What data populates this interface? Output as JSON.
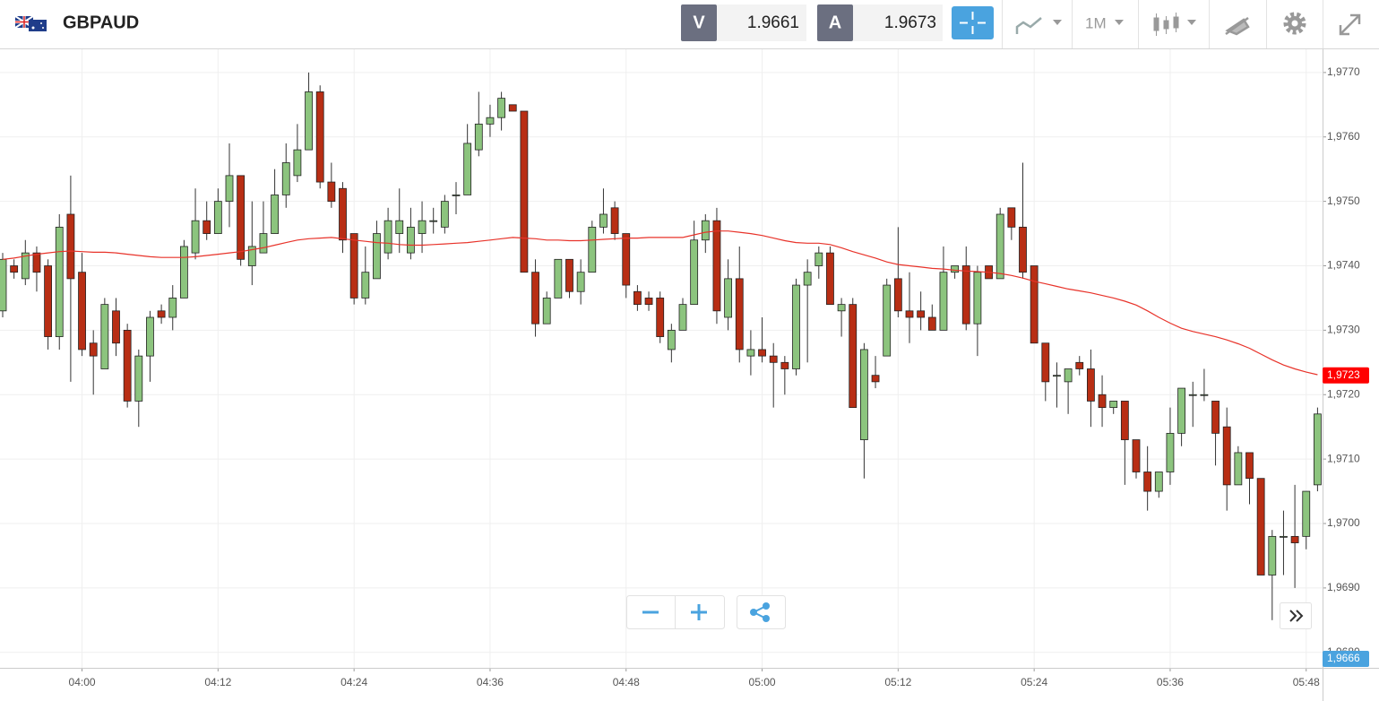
{
  "header": {
    "symbol": "GBPAUD",
    "bid_label": "V",
    "bid": 1.9661,
    "ask_label": "A",
    "ask": 1.9673,
    "timeframe": "1M"
  },
  "chart_data": {
    "type": "candlestick",
    "categories": [
      null,
      null,
      null,
      null,
      null,
      null,
      null,
      "04:00",
      null,
      null,
      null,
      null,
      null,
      null,
      null,
      null,
      null,
      null,
      null,
      "04:12",
      null,
      null,
      null,
      null,
      null,
      null,
      null,
      null,
      null,
      null,
      null,
      "04:24",
      null,
      null,
      null,
      null,
      null,
      null,
      null,
      null,
      null,
      null,
      null,
      "04:36",
      null,
      null,
      null,
      null,
      null,
      null,
      null,
      null,
      null,
      null,
      null,
      "04:48",
      null,
      null,
      null,
      null,
      null,
      null,
      null,
      null,
      null,
      null,
      null,
      "05:00",
      null,
      null,
      null,
      null,
      null,
      null,
      null,
      null,
      null,
      null,
      null,
      "05:12",
      null,
      null,
      null,
      null,
      null,
      null,
      null,
      null,
      null,
      null,
      null,
      "05:24",
      null,
      null,
      null,
      null,
      null,
      null,
      null,
      null,
      null,
      null,
      null,
      "05:36",
      null,
      null,
      null,
      null,
      null,
      null,
      null,
      null,
      null,
      null,
      null,
      "05:48",
      null
    ],
    "open": [
      1.9733,
      1.974,
      1.9738,
      1.9742,
      1.974,
      1.9729,
      1.9748,
      1.9739,
      1.9728,
      1.9724,
      1.9733,
      1.973,
      1.9719,
      1.9726,
      1.9733,
      1.9732,
      1.9735,
      1.9742,
      1.9747,
      1.9745,
      1.975,
      1.9754,
      1.974,
      1.9742,
      1.9745,
      1.9751,
      1.9754,
      1.9758,
      1.9767,
      1.9753,
      1.9752,
      1.9745,
      1.9735,
      1.9738,
      1.9742,
      1.9745,
      1.9742,
      1.9745,
      1.9747,
      1.9746,
      1.9751,
      1.9751,
      1.9758,
      1.9762,
      1.9763,
      1.9765,
      1.9764,
      1.9739,
      1.9731,
      1.9735,
      1.9741,
      1.9736,
      1.9739,
      1.9746,
      1.9749,
      1.9745,
      1.9736,
      1.9735,
      1.9735,
      1.9727,
      1.973,
      1.9734,
      1.9744,
      1.9747,
      1.9732,
      1.9738,
      1.9726,
      1.9727,
      1.9726,
      1.9725,
      1.9724,
      1.9737,
      1.974,
      1.9742,
      1.9733,
      1.9734,
      1.9713,
      1.9723,
      1.9726,
      1.9738,
      1.9733,
      1.9733,
      1.9732,
      1.973,
      1.9739,
      1.974,
      1.9731,
      1.974,
      1.9738,
      1.9749,
      1.9746,
      1.974,
      1.9728,
      1.9723,
      1.9722,
      1.9725,
      1.9724,
      1.972,
      1.9718,
      1.9719,
      1.9713,
      1.9708,
      1.9705,
      1.9708,
      1.9714,
      1.972,
      1.972,
      1.9719,
      1.9715,
      1.9706,
      1.9711,
      1.9707,
      1.9692,
      1.9698,
      1.9698,
      1.9698,
      1.9706
    ],
    "high": [
      1.9742,
      1.9741,
      1.9744,
      1.9743,
      1.9741,
      1.9748,
      1.9754,
      1.9742,
      1.973,
      1.9735,
      1.9735,
      1.9731,
      1.9727,
      1.9733,
      1.9734,
      1.9737,
      1.9744,
      1.9752,
      1.975,
      1.9752,
      1.9759,
      1.9754,
      1.975,
      1.975,
      1.9755,
      1.9759,
      1.9762,
      1.977,
      1.9768,
      1.9756,
      1.9753,
      1.9745,
      1.9743,
      1.9747,
      1.9749,
      1.9752,
      1.9749,
      1.975,
      1.9749,
      1.9751,
      1.9753,
      1.9762,
      1.9767,
      1.9765,
      1.9767,
      1.9765,
      1.9764,
      1.9741,
      1.9736,
      1.9741,
      1.9741,
      1.9741,
      1.9747,
      1.9752,
      1.975,
      1.9745,
      1.9737,
      1.9736,
      1.9736,
      1.9731,
      1.9735,
      1.9747,
      1.9748,
      1.9749,
      1.9741,
      1.9743,
      1.973,
      1.9732,
      1.9728,
      1.9726,
      1.9738,
      1.9741,
      1.9743,
      1.9743,
      1.9735,
      1.9735,
      1.9728,
      1.9726,
      1.9738,
      1.9746,
      1.9739,
      1.9736,
      1.9734,
      1.9743,
      1.974,
      1.9743,
      1.974,
      1.974,
      1.9749,
      1.9749,
      1.9756,
      1.974,
      1.9728,
      1.9725,
      1.9724,
      1.9726,
      1.9727,
      1.9723,
      1.9719,
      1.9719,
      1.9713,
      1.9712,
      1.9708,
      1.9718,
      1.9721,
      1.9722,
      1.9724,
      1.9719,
      1.9718,
      1.9712,
      1.9711,
      1.9707,
      1.9699,
      1.9702,
      1.9706,
      1.9705,
      1.9718
    ],
    "low": [
      1.9732,
      1.9738,
      1.9737,
      1.9736,
      1.9727,
      1.9727,
      1.9722,
      1.9726,
      1.972,
      1.9724,
      1.9726,
      1.9718,
      1.9715,
      1.9722,
      1.9731,
      1.973,
      1.9735,
      1.9741,
      1.9744,
      1.9745,
      1.9746,
      1.974,
      1.9737,
      1.9742,
      1.9745,
      1.9749,
      1.9753,
      1.9758,
      1.9752,
      1.9749,
      1.9742,
      1.9734,
      1.9734,
      1.9738,
      1.9741,
      1.9742,
      1.9741,
      1.9742,
      1.9745,
      1.9745,
      1.9748,
      1.9751,
      1.9757,
      1.976,
      1.9761,
      1.9764,
      1.9739,
      1.9729,
      1.9731,
      1.9735,
      1.9735,
      1.9734,
      1.9739,
      1.9745,
      1.9744,
      1.9735,
      1.9733,
      1.9733,
      1.9728,
      1.9725,
      1.973,
      1.9734,
      1.9742,
      1.9731,
      1.973,
      1.9725,
      1.9723,
      1.9725,
      1.9718,
      1.972,
      1.9723,
      1.9725,
      1.9738,
      1.9734,
      1.9729,
      1.9718,
      1.9707,
      1.9721,
      1.9726,
      1.9732,
      1.9728,
      1.973,
      1.973,
      1.973,
      1.9738,
      1.973,
      1.9726,
      1.9738,
      1.9738,
      1.9744,
      1.9738,
      1.9728,
      1.9719,
      1.9718,
      1.9717,
      1.9723,
      1.9715,
      1.9715,
      1.9717,
      1.9706,
      1.9707,
      1.9702,
      1.9704,
      1.9706,
      1.9712,
      1.9715,
      1.9719,
      1.9709,
      1.9702,
      1.9706,
      1.9703,
      1.9692,
      1.9685,
      1.9692,
      1.969,
      1.9696,
      1.9705
    ],
    "close": [
      1.9741,
      1.9739,
      1.9742,
      1.9739,
      1.9729,
      1.9746,
      1.9738,
      1.9727,
      1.9726,
      1.9734,
      1.9728,
      1.9719,
      1.9726,
      1.9732,
      1.9732,
      1.9735,
      1.9743,
      1.9747,
      1.9745,
      1.975,
      1.9754,
      1.9741,
      1.9743,
      1.9745,
      1.9751,
      1.9756,
      1.9758,
      1.9767,
      1.9753,
      1.975,
      1.9744,
      1.9735,
      1.9739,
      1.9745,
      1.9747,
      1.9747,
      1.9746,
      1.9747,
      1.9747,
      1.975,
      1.9751,
      1.9759,
      1.9762,
      1.9763,
      1.9766,
      1.9764,
      1.9739,
      1.9731,
      1.9735,
      1.9741,
      1.9736,
      1.9739,
      1.9746,
      1.9748,
      1.9745,
      1.9737,
      1.9734,
      1.9734,
      1.9729,
      1.973,
      1.9734,
      1.9744,
      1.9747,
      1.9733,
      1.9738,
      1.9727,
      1.9727,
      1.9726,
      1.9725,
      1.9724,
      1.9737,
      1.9739,
      1.9742,
      1.9734,
      1.9734,
      1.9718,
      1.9727,
      1.9722,
      1.9737,
      1.9733,
      1.9732,
      1.9732,
      1.973,
      1.9739,
      1.974,
      1.9731,
      1.9739,
      1.9738,
      1.9748,
      1.9746,
      1.9739,
      1.9728,
      1.9722,
      1.9723,
      1.9724,
      1.9724,
      1.9719,
      1.9718,
      1.9719,
      1.9713,
      1.9708,
      1.9705,
      1.9708,
      1.9714,
      1.9721,
      1.972,
      1.972,
      1.9714,
      1.9706,
      1.9711,
      1.9707,
      1.9692,
      1.9698,
      1.9698,
      1.9697,
      1.9705,
      1.9717
    ],
    "up_color": "#8cc47e",
    "down_color": "#b82e14",
    "moving_average": {
      "color": "#e8332a",
      "values": [
        1.9741,
        1.97412,
        1.97415,
        1.97418,
        1.9742,
        1.97422,
        1.97423,
        1.97422,
        1.97421,
        1.97421,
        1.9742,
        1.97418,
        1.97416,
        1.97414,
        1.97413,
        1.97413,
        1.97413,
        1.97414,
        1.97416,
        1.97418,
        1.9742,
        1.97422,
        1.97425,
        1.97428,
        1.97432,
        1.97436,
        1.9744,
        1.97442,
        1.97443,
        1.97444,
        1.97442,
        1.9744,
        1.97438,
        1.97436,
        1.97435,
        1.97433,
        1.97432,
        1.97432,
        1.97433,
        1.97434,
        1.97435,
        1.97436,
        1.97438,
        1.9744,
        1.97442,
        1.97444,
        1.97443,
        1.97442,
        1.9744,
        1.9744,
        1.97439,
        1.97439,
        1.9744,
        1.97441,
        1.97442,
        1.97443,
        1.97443,
        1.97444,
        1.97444,
        1.97444,
        1.97444,
        1.97448,
        1.97452,
        1.97454,
        1.97454,
        1.97452,
        1.9745,
        1.97447,
        1.97443,
        1.97439,
        1.97436,
        1.97435,
        1.97435,
        1.97433,
        1.97428,
        1.97422,
        1.97417,
        1.97412,
        1.97406,
        1.97402,
        1.974,
        1.97398,
        1.97396,
        1.97395,
        1.97393,
        1.97392,
        1.97391,
        1.9739,
        1.97388,
        1.97385,
        1.97381,
        1.97376,
        1.97372,
        1.97368,
        1.97364,
        1.97361,
        1.97358,
        1.97354,
        1.9735,
        1.97345,
        1.97339,
        1.9733,
        1.9732,
        1.97311,
        1.97303,
        1.97298,
        1.97294,
        1.9729,
        1.97285,
        1.97279,
        1.97272,
        1.97263,
        1.97254,
        1.97246,
        1.9724,
        1.97235,
        1.97231
      ]
    },
    "ylim": [
      1.96776,
      1.97736
    ],
    "yticks": [
      {
        "value": 1.968,
        "label": "1,9680"
      },
      {
        "value": 1.969,
        "label": "1,9690"
      },
      {
        "value": 1.97,
        "label": "1,9700"
      },
      {
        "value": 1.971,
        "label": "1,9710"
      },
      {
        "value": 1.972,
        "label": "1,9720"
      },
      {
        "value": 1.973,
        "label": "1,9730"
      },
      {
        "value": 1.974,
        "label": "1,9740"
      },
      {
        "value": 1.975,
        "label": "1,9750"
      },
      {
        "value": 1.976,
        "label": "1,9760"
      },
      {
        "value": 1.977,
        "label": "1,9770"
      }
    ],
    "grid": true,
    "price_markers": [
      {
        "value": 1.9723,
        "label": "1,9723",
        "color": "#ff0000"
      },
      {
        "value": 1.9666,
        "label": "1,9666",
        "color": "#4aa3df"
      }
    ]
  }
}
